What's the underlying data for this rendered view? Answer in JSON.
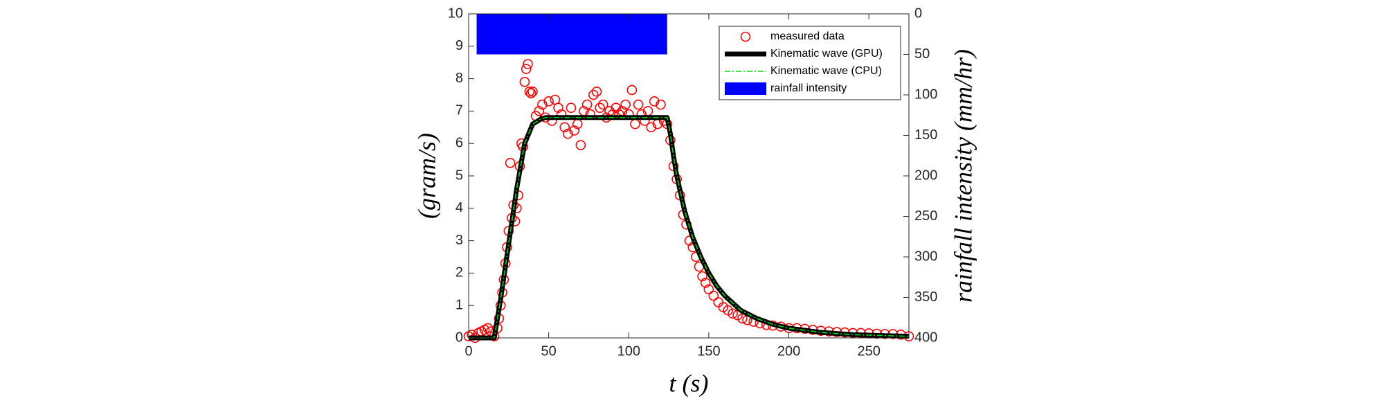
{
  "chart_data": {
    "type": "scatter",
    "xlabel": "t (s)",
    "ylabel": "(gram/s)",
    "y2label": "rainfall intensity (mm/hr)",
    "xlim": [
      0,
      275
    ],
    "xticks": [
      0,
      50,
      100,
      150,
      200,
      250
    ],
    "ylim": [
      0,
      10
    ],
    "yticks": [
      0,
      1,
      2,
      3,
      4,
      5,
      6,
      7,
      8,
      9,
      10
    ],
    "y2lim": [
      400,
      0
    ],
    "y2ticks": [
      0,
      50,
      100,
      150,
      200,
      250,
      300,
      350,
      400
    ],
    "legend": "upper right",
    "series": [
      {
        "name": "measured data",
        "type": "scatter",
        "color": "#ff0000",
        "x": [
          0,
          2,
          4,
          6,
          8,
          10,
          12,
          14,
          16,
          18,
          19,
          20,
          21,
          22,
          23,
          24,
          25,
          26,
          27,
          28,
          29,
          30,
          31,
          32,
          33,
          34,
          35,
          36,
          37,
          38,
          39,
          40,
          42,
          44,
          46,
          48,
          50,
          52,
          54,
          56,
          58,
          60,
          62,
          64,
          66,
          68,
          70,
          72,
          74,
          76,
          78,
          80,
          82,
          84,
          86,
          88,
          90,
          92,
          94,
          96,
          98,
          100,
          102,
          104,
          106,
          108,
          110,
          112,
          114,
          116,
          118,
          120,
          122,
          124,
          126,
          128,
          130,
          132,
          134,
          136,
          138,
          140,
          142,
          144,
          146,
          148,
          150,
          153,
          156,
          159,
          162,
          165,
          168,
          171,
          174,
          178,
          182,
          186,
          190,
          195,
          200,
          205,
          210,
          215,
          220,
          225,
          230,
          235,
          240,
          245,
          250,
          255,
          260,
          265,
          270,
          275
        ],
        "values": [
          0.05,
          0.1,
          0,
          0.15,
          0.2,
          0.25,
          0.3,
          0.2,
          0.05,
          0.3,
          0.6,
          1,
          1.4,
          1.8,
          2.3,
          2.8,
          3.3,
          5.4,
          3.7,
          4.1,
          3.6,
          4,
          4.4,
          5.3,
          6,
          5.9,
          7.9,
          8.3,
          8.45,
          7.6,
          7.55,
          7.6,
          6.85,
          7,
          7.2,
          6.8,
          7.3,
          6.7,
          7.35,
          7.1,
          6.9,
          6.5,
          6.3,
          7.1,
          6.4,
          6.6,
          5.95,
          7,
          7.2,
          6.9,
          7.5,
          7.6,
          7.1,
          7.2,
          6.8,
          7,
          6.9,
          7.1,
          6.9,
          7,
          7.2,
          6.9,
          7.65,
          6.6,
          7.2,
          6.9,
          6.7,
          7,
          6.5,
          7.3,
          6.6,
          7.2,
          6.7,
          6.6,
          6.1,
          5.3,
          4.9,
          4.4,
          3.8,
          3.5,
          3,
          2.8,
          2.5,
          2.2,
          1.9,
          1.7,
          1.5,
          1.3,
          1.1,
          0.95,
          0.85,
          0.75,
          0.7,
          0.6,
          0.55,
          0.5,
          0.45,
          0.4,
          0.38,
          0.35,
          0.3,
          0.3,
          0.28,
          0.25,
          0.22,
          0.2,
          0.18,
          0.17,
          0.15,
          0.15,
          0.14,
          0.13,
          0.12,
          0.12,
          0.1,
          0.05
        ]
      },
      {
        "name": "Kinematic wave (GPU)",
        "type": "line",
        "color": "#000000",
        "x": [
          0,
          16,
          20,
          25,
          30,
          35,
          40,
          45,
          48,
          55,
          124,
          126,
          128,
          130,
          135,
          140,
          145,
          150,
          155,
          160,
          170,
          180,
          190,
          200,
          220,
          240,
          260,
          275
        ],
        "values": [
          0,
          0,
          1.2,
          2.9,
          4.6,
          6,
          6.6,
          6.75,
          6.8,
          6.8,
          6.8,
          6.3,
          5.6,
          5,
          3.9,
          3.1,
          2.5,
          2,
          1.6,
          1.3,
          0.85,
          0.6,
          0.42,
          0.3,
          0.17,
          0.1,
          0.07,
          0.05
        ]
      },
      {
        "name": "Kinematic wave (CPU)",
        "type": "line",
        "color": "#00dd00",
        "x": [
          0,
          16,
          20,
          25,
          30,
          35,
          40,
          45,
          48,
          55,
          124,
          126,
          128,
          130,
          135,
          140,
          145,
          150,
          155,
          160,
          170,
          180,
          190,
          200,
          220,
          240,
          260,
          275
        ],
        "values": [
          0,
          0,
          1.2,
          2.9,
          4.6,
          6,
          6.6,
          6.75,
          6.8,
          6.8,
          6.8,
          6.3,
          5.6,
          5,
          3.9,
          3.1,
          2.5,
          2,
          1.6,
          1.3,
          0.85,
          0.6,
          0.42,
          0.3,
          0.17,
          0.1,
          0.07,
          0.05
        ]
      },
      {
        "name": "rainfall intensity",
        "type": "bar",
        "axis": "y2",
        "color": "#0000ff",
        "bins": [
          5,
          124
        ],
        "values": [
          50
        ]
      }
    ]
  }
}
